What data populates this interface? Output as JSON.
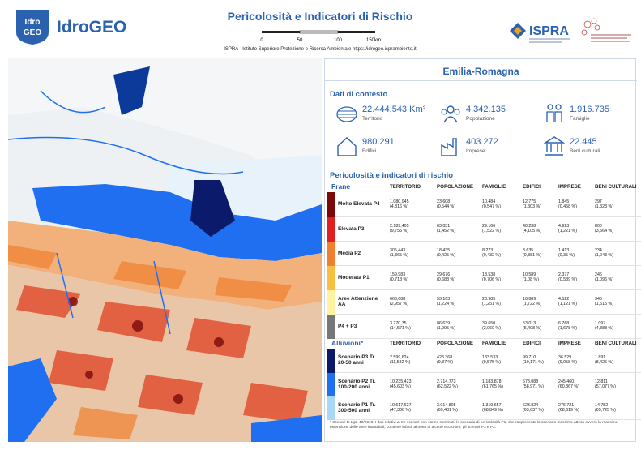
{
  "header": {
    "logo_text": [
      "Idro",
      "GEO"
    ],
    "app_name": "IdroGEO",
    "title": "Pericolosità e Indicatori di Rischio",
    "scale_labels": [
      "0",
      "50",
      "100",
      "150km"
    ],
    "subtitle": "ISPRA - Istituto Superiore Protezione e Ricerca Ambientale  https://idrogeo.isprambiente.it",
    "partner": "ISPRA"
  },
  "panel": {
    "region": "Emilia-Romagna",
    "context": {
      "title": "Dati di contesto",
      "items": [
        {
          "value": "22.444,543 Km²",
          "label": "Territorio"
        },
        {
          "value": "4.342.135",
          "label": "Popolazione"
        },
        {
          "value": "1.916.735",
          "label": "Famiglie"
        },
        {
          "value": "980.291",
          "label": "Edifici"
        },
        {
          "value": "403.272",
          "label": "Imprese"
        },
        {
          "value": "22.445",
          "label": "Beni culturali"
        }
      ]
    },
    "risk_title": "Pericolosità e indicatori di rischio",
    "tables": [
      {
        "caption": "Frane",
        "columns": [
          "TERRITORIO",
          "POPOLAZIONE",
          "FAMIGLIE",
          "EDIFICI",
          "IMPRESE",
          "BENI CULTURALI"
        ],
        "rows": [
          {
            "label": [
              "Molto Elevata P4"
            ],
            "cells": [
              [
                "1.080,945",
                "(4,816 %)"
              ],
              [
                "23.608",
                "(0,544 %)"
              ],
              [
                "10.484",
                "(0,547 %)"
              ],
              [
                "12.775",
                "(1,303 %)"
              ],
              [
                "1.845",
                "(0,458 %)"
              ],
              [
                "297",
                "(1,323 %)"
              ]
            ]
          },
          {
            "label": [
              "Elevata P3"
            ],
            "cells": [
              [
                "2.189,405",
                "(9,755 %)"
              ],
              [
                "63.031",
                "(1,452 %)"
              ],
              [
                "29.166",
                "(1,522 %)"
              ],
              [
                "40.238",
                "(4,105 %)"
              ],
              [
                "4.923",
                "(1,221 %)"
              ],
              [
                "800",
                "(3,564 %)"
              ]
            ]
          },
          {
            "label": [
              "Media P2"
            ],
            "cells": [
              [
                "306,443",
                "(1,365 %)"
              ],
              [
                "18.435",
                "(0,425 %)"
              ],
              [
                "8.273",
                "(0,432 %)"
              ],
              [
                "8.635",
                "(0,881 %)"
              ],
              [
                "1.413",
                "(0,35 %)"
              ],
              [
                "234",
                "(1,043 %)"
              ]
            ]
          },
          {
            "label": [
              "Moderata P1"
            ],
            "cells": [
              [
                "159,983",
                "(0,713 %)"
              ],
              [
                "29.676",
                "(0,683 %)"
              ],
              [
                "13.538",
                "(0,706 %)"
              ],
              [
                "10.589",
                "(1,08 %)"
              ],
              [
                "2.377",
                "(0,589 %)"
              ],
              [
                "246",
                "(1,096 %)"
              ]
            ]
          },
          {
            "label": [
              "Aree Attenzione",
              "AA"
            ],
            "cells": [
              [
                "663,688",
                "(2,957 %)"
              ],
              [
                "53.163",
                "(1,224 %)"
              ],
              [
                "23.985",
                "(1,251 %)"
              ],
              [
                "16.889",
                "(1,722 %)"
              ],
              [
                "4.522",
                "(1,121 %)"
              ],
              [
                "340",
                "(1,515 %)"
              ]
            ]
          },
          {
            "label": [
              "P4 + P3"
            ],
            "cells": [
              [
                "3.270,35",
                "(14,571 %)"
              ],
              [
                "86.639",
                "(1,995 %)"
              ],
              [
                "39.650",
                "(2,069 %)"
              ],
              [
                "53.013",
                "(5,408 %)"
              ],
              [
                "6.768",
                "(1,678 %)"
              ],
              [
                "1.097",
                "(4,888 %)"
              ]
            ]
          }
        ]
      },
      {
        "caption": "Alluvioni*",
        "columns": [
          "TERRITORIO",
          "POPOLAZIONE",
          "FAMIGLIE",
          "EDIFICI",
          "IMPRESE",
          "BENI CULTURALI"
        ],
        "rows": [
          {
            "label": [
              "Scenario P3 Tr.",
              "20-50 anni"
            ],
            "cells": [
              [
                "2.599,624",
                "(11,582 %)"
              ],
              [
                "428.368",
                "(9,87 %)"
              ],
              [
                "183.533",
                "(9,575 %)"
              ],
              [
                "99.710",
                "(10,171 %)"
              ],
              [
                "36.529",
                "(9,058 %)"
              ],
              [
                "1.891",
                "(8,425 %)"
              ]
            ]
          },
          {
            "label": [
              "Scenario P2 Tr.",
              "100-200 anni"
            ],
            "cells": [
              [
                "10.235,423",
                "(45,603 %)"
              ],
              [
                "2.714.773",
                "(62,522 %)"
              ],
              [
                "1.183.878",
                "(61,765 %)"
              ],
              [
                "578.088",
                "(58,971 %)"
              ],
              [
                "245.460",
                "(60,867 %)"
              ],
              [
                "12.811",
                "(57,077 %)"
              ]
            ]
          },
          {
            "label": [
              "Scenario P1 Tr.",
              "300-500 anni"
            ],
            "cells": [
              [
                "10.617,627",
                "(47,306 %)"
              ],
              [
                "3.014.805",
                "(69,431 %)"
              ],
              [
                "1.319.657",
                "(68,849 %)"
              ],
              [
                "623.824",
                "(63,637 %)"
              ],
              [
                "276.721",
                "(68,619 %)"
              ],
              [
                "14.752",
                "(65,725 %)"
              ]
            ]
          }
        ]
      }
    ],
    "footnote": "* Scenari D.Lgs. 49/2010. I dati relativi ai tre scenari non vanno sommati; lo scenario di pericolosità P1, che rappresenta lo scenario massimo atteso ovvero la massima estensione delle aree inondabili, contiene infatti, al netto di alcune eccezioni, gli scenari P3 e P2."
  }
}
